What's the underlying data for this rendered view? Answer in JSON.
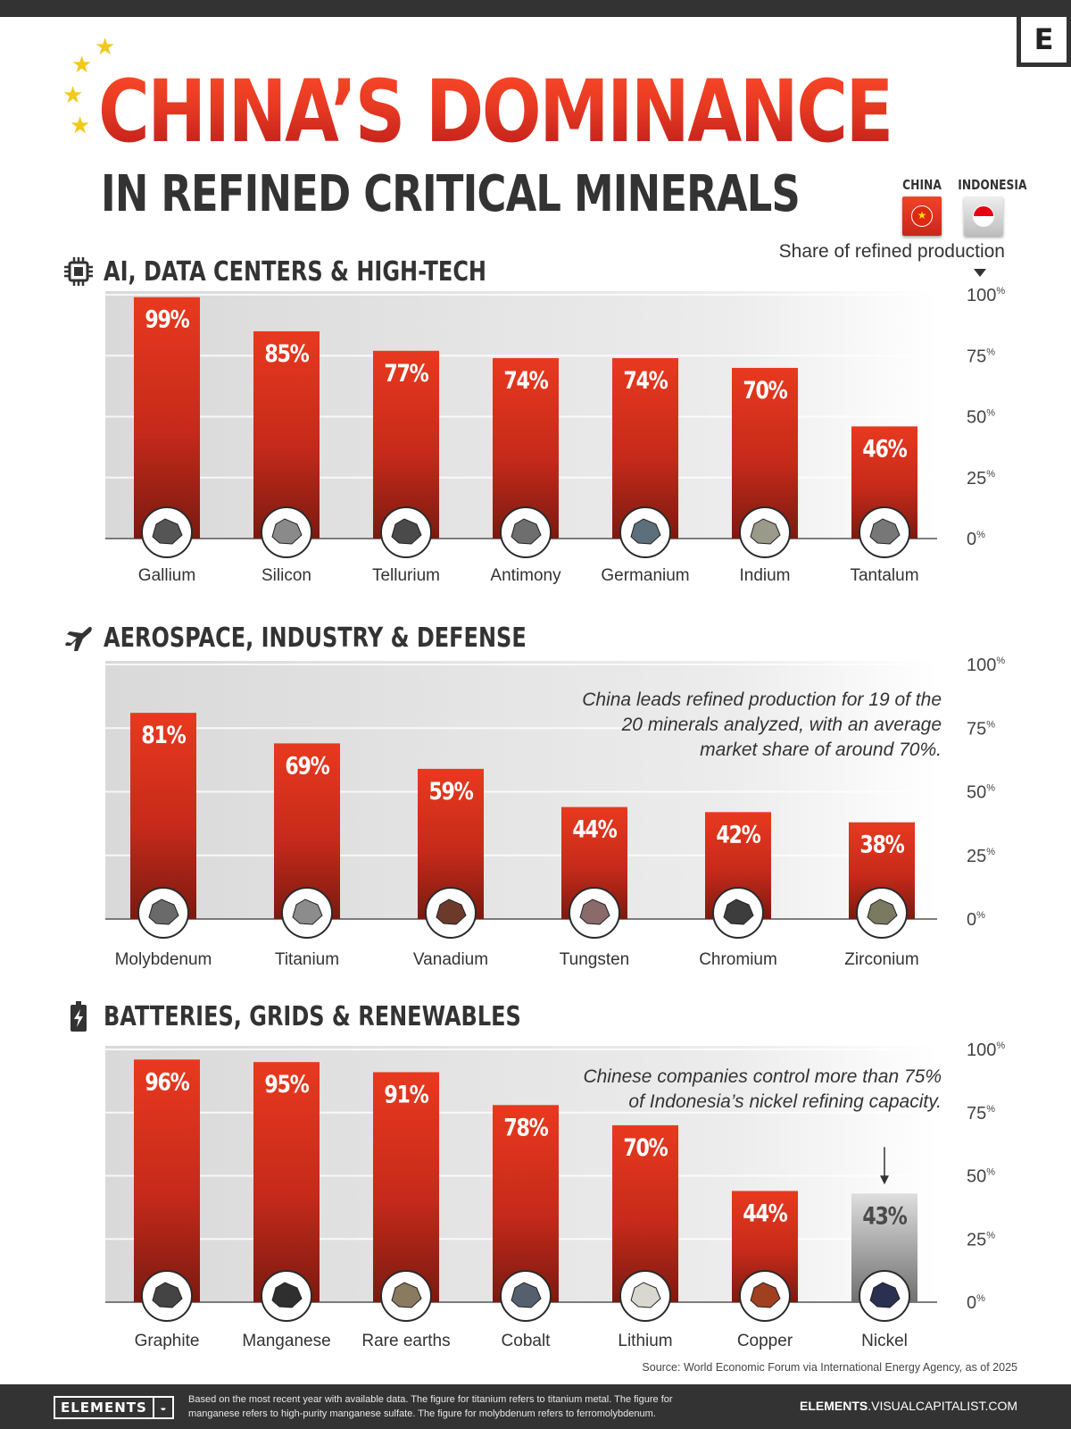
{
  "brand": {
    "corner_letter": "E"
  },
  "header": {
    "title": "CHINA’S DOMINANCE",
    "subtitle": "IN REFINED CRITICAL MINERALS",
    "stars": [
      "★",
      "★",
      "★",
      "★"
    ]
  },
  "legend": [
    {
      "label": "CHINA",
      "color": "#e0301e"
    },
    {
      "label": "INDONESIA",
      "color": "#bdbdbd"
    }
  ],
  "share_label": "Share of refined production",
  "colors": {
    "china_bar_top": "#e8391f",
    "china_bar_bottom": "#7a1a10",
    "indonesia_bar_top": "#dedede",
    "indonesia_bar_bottom": "#707070",
    "panel": "#e3e3e3"
  },
  "chart_data": [
    {
      "type": "bar",
      "section_title": "AI, DATA CENTERS & HIGH-TECH",
      "icon": "chip-icon",
      "ylim": [
        0,
        100
      ],
      "yticks": [
        0,
        25,
        50,
        75,
        100
      ],
      "tick_suffix": "%",
      "categories": [
        "Gallium",
        "Silicon",
        "Tellurium",
        "Antimony",
        "Germanium",
        "Indium",
        "Tantalum"
      ],
      "values": [
        99,
        85,
        77,
        74,
        74,
        70,
        46
      ],
      "labels": [
        "99%",
        "85%",
        "77%",
        "74%",
        "74%",
        "70%",
        "46%"
      ],
      "country": [
        "China",
        "China",
        "China",
        "China",
        "China",
        "China",
        "China"
      ],
      "annotation": ""
    },
    {
      "type": "bar",
      "section_title": "AEROSPACE, INDUSTRY & DEFENSE",
      "icon": "airplane-icon",
      "ylim": [
        0,
        100
      ],
      "yticks": [
        0,
        25,
        50,
        75,
        100
      ],
      "tick_suffix": "%",
      "categories": [
        "Molybdenum",
        "Titanium",
        "Vanadium",
        "Tungsten",
        "Chromium",
        "Zirconium"
      ],
      "values": [
        81,
        69,
        59,
        44,
        42,
        38
      ],
      "labels": [
        "81%",
        "69%",
        "59%",
        "44%",
        "42%",
        "38%"
      ],
      "country": [
        "China",
        "China",
        "China",
        "China",
        "China",
        "China"
      ],
      "annotation": "China leads refined production for 19 of the 20 minerals analyzed, with an average market share of around 70%."
    },
    {
      "type": "bar",
      "section_title": "BATTERIES, GRIDS & RENEWABLES",
      "icon": "battery-icon",
      "ylim": [
        0,
        100
      ],
      "yticks": [
        0,
        25,
        50,
        75,
        100
      ],
      "tick_suffix": "%",
      "categories": [
        "Graphite",
        "Manganese",
        "Rare earths",
        "Cobalt",
        "Lithium",
        "Copper",
        "Nickel"
      ],
      "values": [
        96,
        95,
        91,
        78,
        70,
        44,
        43
      ],
      "labels": [
        "96%",
        "95%",
        "91%",
        "78%",
        "70%",
        "44%",
        "43%"
      ],
      "country": [
        "China",
        "China",
        "China",
        "China",
        "China",
        "China",
        "Indonesia"
      ],
      "annotation": "Chinese companies control more than 75% of Indonesia’s nickel refining capacity."
    }
  ],
  "source": "Source: World Economic Forum via International Energy Agency, as of 2025",
  "footer": {
    "logo": "ELEMENTS",
    "note": "Based on the most recent year with available data. The figure for titanium refers to titanium metal. The figure for manganese refers to high-purity manganese sulfate. The figure for molybdenum refers to ferromolybdenum.",
    "site_bold": "ELEMENTS",
    "site_rest": ".VISUALCAPITALIST.COM"
  }
}
